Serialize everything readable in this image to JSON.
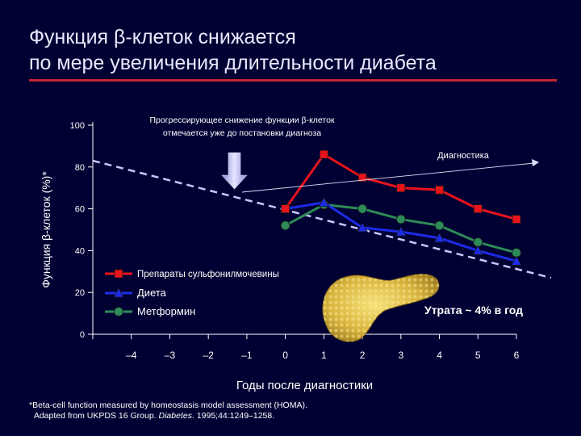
{
  "title": {
    "line1": "Функция β-клеток снижается",
    "line2": "по мере увеличения длительности диабета"
  },
  "chart_data": {
    "type": "line",
    "x": [
      -4,
      -3,
      -2,
      -1,
      0,
      1,
      2,
      3,
      4,
      5,
      6
    ],
    "xlim": [
      -5,
      6
    ],
    "ylim": [
      0,
      100
    ],
    "yticks": [
      0,
      20,
      40,
      60,
      80,
      100
    ],
    "xticks": [
      -4,
      -3,
      -2,
      -1,
      0,
      1,
      2,
      3,
      4,
      5,
      6
    ],
    "xlabel": "Годы после диагностики",
    "ylabel": "Функция β-клеток (%)*",
    "grid": false,
    "legend_position": "bottom-left",
    "series": [
      {
        "name": "Препараты сульфонилмочевины",
        "color": "#e8141b",
        "marker": "square",
        "points": [
          [
            0,
            60
          ],
          [
            1,
            86
          ],
          [
            2,
            75
          ],
          [
            3,
            70
          ],
          [
            4,
            69
          ],
          [
            5,
            60
          ],
          [
            6,
            55
          ]
        ]
      },
      {
        "name": "Диета",
        "color": "#1c2be6",
        "marker": "triangle",
        "points": [
          [
            0,
            60
          ],
          [
            1,
            63
          ],
          [
            2,
            51
          ],
          [
            3,
            49
          ],
          [
            4,
            46
          ],
          [
            5,
            40
          ],
          [
            6,
            35
          ]
        ]
      },
      {
        "name": "Метформин",
        "color": "#2e8b57",
        "marker": "circle",
        "points": [
          [
            0,
            52
          ],
          [
            1,
            62
          ],
          [
            2,
            60
          ],
          [
            3,
            55
          ],
          [
            4,
            52
          ],
          [
            5,
            44
          ],
          [
            6,
            39
          ]
        ]
      }
    ],
    "trend_line": {
      "from": [
        -5,
        83
      ],
      "to": [
        6.9,
        27
      ],
      "color": "#c8c8ff"
    },
    "annotations": {
      "progressive_decline": "Прогрессирующее снижение функции β-клеток отмечается уже до постановки диагноза",
      "diagnosis": "Диагностика",
      "loss_rate": "Утрата ~ 4% в год"
    }
  },
  "footnote": {
    "line1": "*Beta-cell function measured by homeostasis model assessment (HOMA).",
    "line2_prefix": "Adapted from UKPDS 16 Group. ",
    "line2_journal": "Diabetes",
    "line2_suffix": ". 1995;44:1249–1258."
  }
}
